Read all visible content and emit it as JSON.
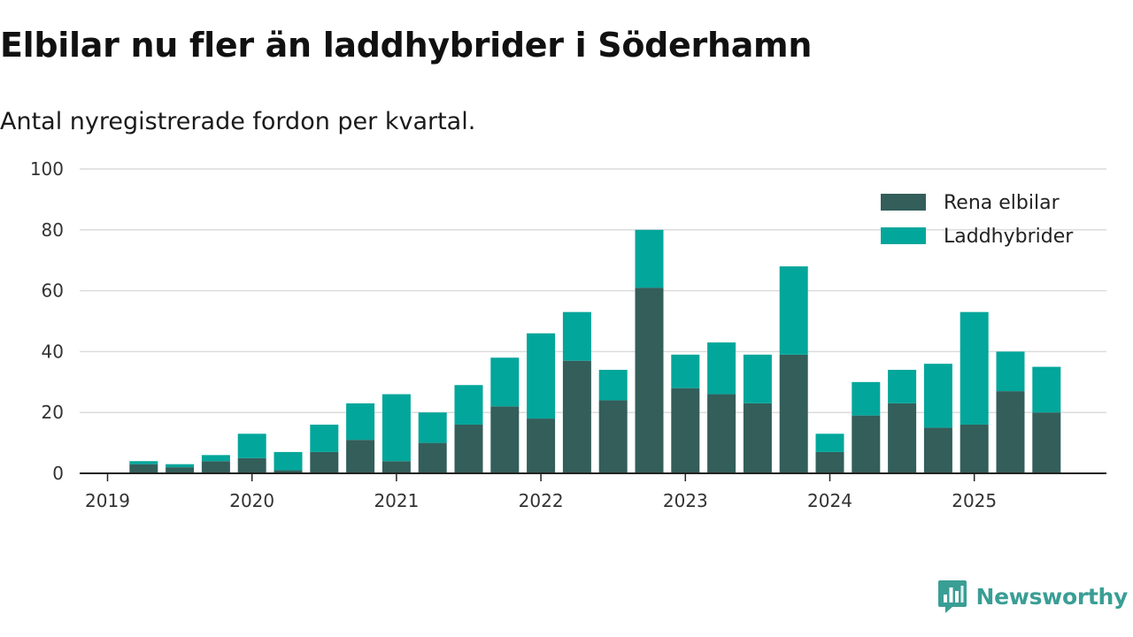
{
  "header": {
    "title": "Elbilar nu fler än laddhybrider i Söderhamn",
    "subtitle": "Antal nyregistrerade fordon per kvartal."
  },
  "brand": {
    "name": "Newsworthy",
    "color": "#3a9e95"
  },
  "chart_data": {
    "type": "bar",
    "stacked": true,
    "title": "Elbilar nu fler än laddhybrider i Söderhamn",
    "subtitle": "Antal nyregistrerade fordon per kvartal.",
    "xlabel": "",
    "ylabel": "",
    "ylim": [
      0,
      100
    ],
    "y_ticks": [
      0,
      20,
      40,
      60,
      80,
      100
    ],
    "grid": true,
    "legend_position": "top-right",
    "x_tick_labels": [
      "2019",
      "2020",
      "2021",
      "2022",
      "2023",
      "2024",
      "2025"
    ],
    "categories": [
      "2019-Q2",
      "2019-Q3",
      "2019-Q4",
      "2020-Q1",
      "2020-Q2",
      "2020-Q3",
      "2020-Q4",
      "2021-Q1",
      "2021-Q2",
      "2021-Q3",
      "2021-Q4",
      "2022-Q1",
      "2022-Q2",
      "2022-Q3",
      "2022-Q4",
      "2023-Q1",
      "2023-Q2",
      "2023-Q3",
      "2023-Q4",
      "2024-Q1",
      "2024-Q2",
      "2024-Q3",
      "2024-Q4",
      "2025-Q1",
      "2025-Q2",
      "2025-Q3"
    ],
    "series": [
      {
        "name": "Rena elbilar",
        "color": "#335e5a",
        "values": [
          3,
          2,
          4,
          5,
          1,
          7,
          11,
          4,
          10,
          16,
          22,
          18,
          37,
          24,
          61,
          28,
          26,
          23,
          39,
          7,
          19,
          23,
          15,
          16,
          27,
          20
        ]
      },
      {
        "name": "Laddhybrider",
        "color": "#03a69b",
        "values": [
          1,
          1,
          2,
          8,
          6,
          9,
          12,
          22,
          10,
          13,
          16,
          28,
          16,
          10,
          19,
          11,
          17,
          16,
          29,
          6,
          11,
          11,
          21,
          37,
          13,
          15
        ]
      }
    ]
  }
}
